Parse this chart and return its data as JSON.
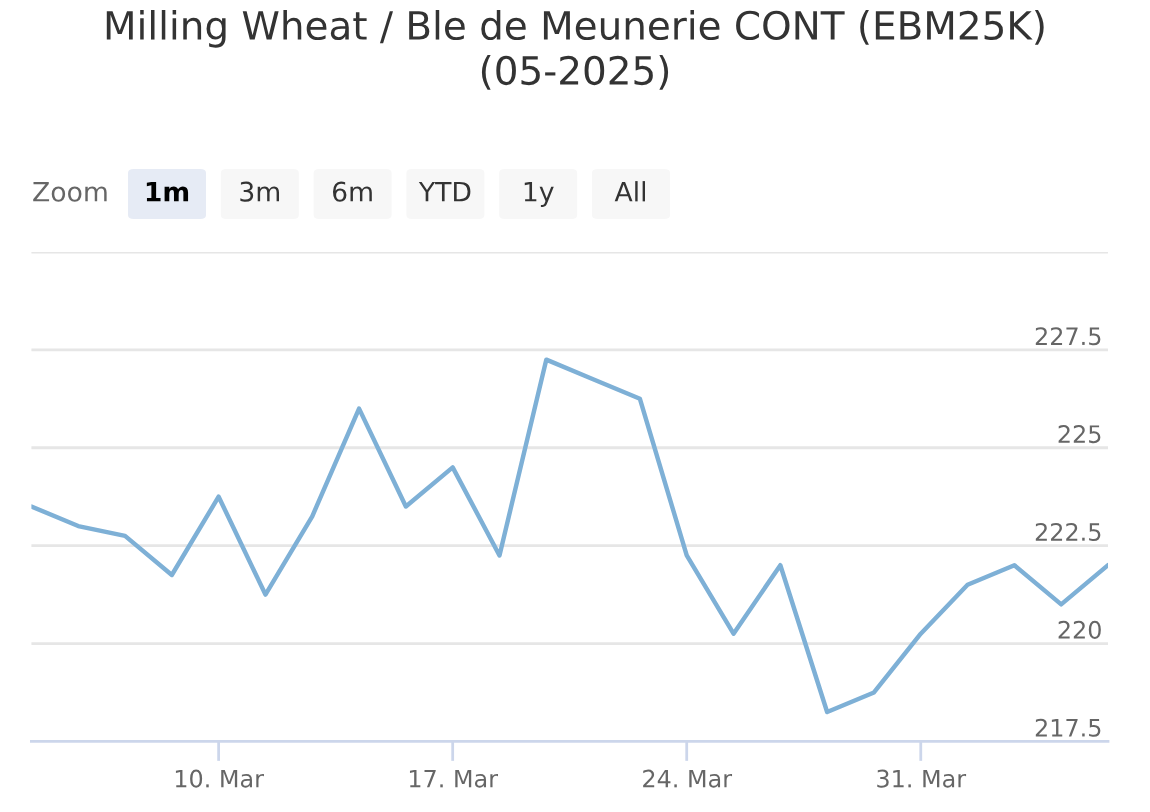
{
  "chart_data": {
    "type": "line",
    "title": "Milling Wheat / Ble de Meunerie CONT (EBM25K)\n(05-2025)",
    "annotations": [
      "Zoom",
      "1m",
      "3m",
      "6m",
      "YTD",
      "1y",
      "All"
    ],
    "categories": [
      null,
      null,
      null,
      null,
      "10. Mar",
      null,
      null,
      null,
      null,
      "17. Mar",
      null,
      null,
      null,
      null,
      "24. Mar",
      null,
      null,
      null,
      null,
      "31. Mar",
      null,
      null,
      null,
      null
    ],
    "values": [
      223.5,
      223.0,
      222.75,
      221.75,
      223.75,
      221.25,
      223.25,
      226.0,
      223.5,
      224.5,
      222.25,
      227.25,
      226.75,
      226.25,
      222.25,
      220.25,
      222.0,
      218.25,
      218.75,
      220.25,
      221.5,
      222.0,
      221.0,
      222.0
    ],
    "color": "#7eb0d6",
    "ylim": [
      217.5,
      230
    ],
    "yticks": [
      217.5,
      220,
      222.5,
      225,
      227.5,
      {
        "value": 230,
        "label": null
      }
    ],
    "grid": "y",
    "line_style": "solid"
  }
}
